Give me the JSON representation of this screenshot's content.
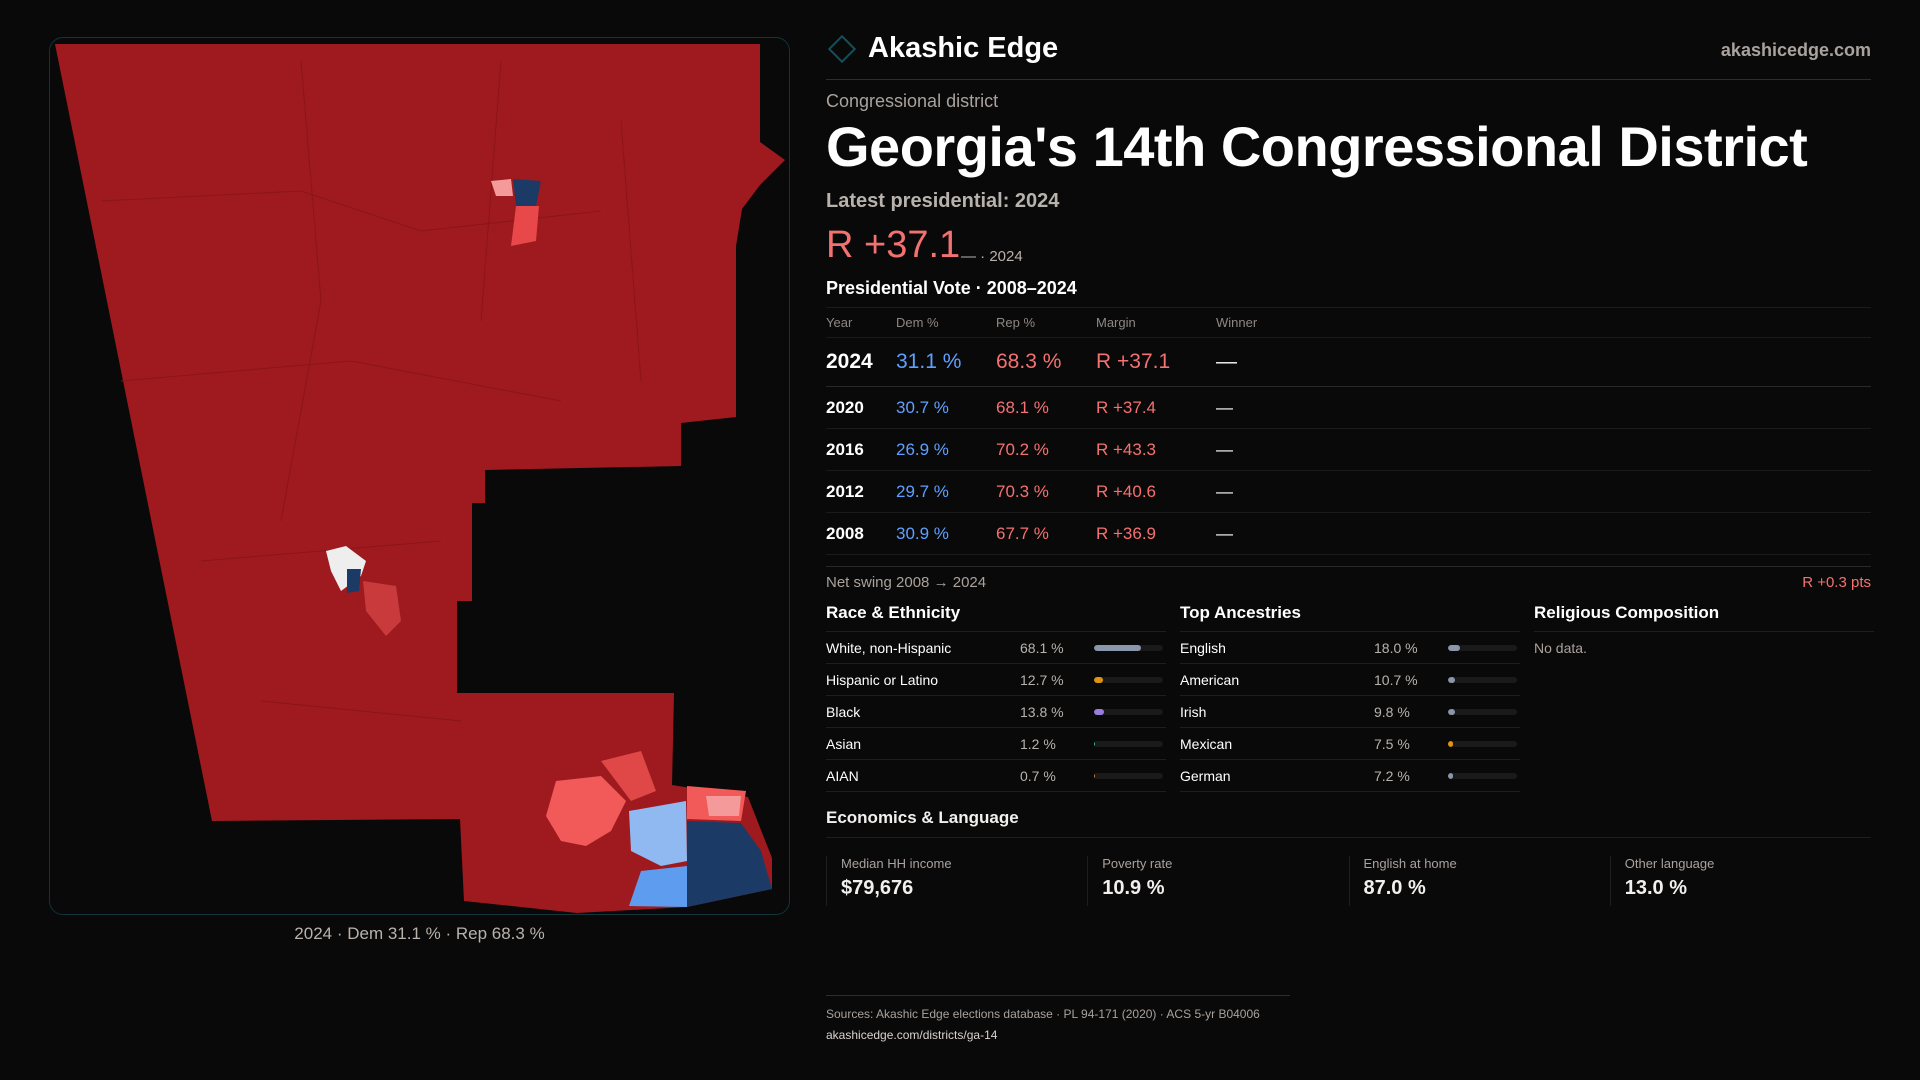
{
  "brand": {
    "name": "Akashic Edge",
    "site": "akashicedge.com",
    "logo_icon": "diamond-icon"
  },
  "header": {
    "kicker": "Congressional district",
    "title": "Georgia's 14th Congressional District",
    "latest": "Latest presidential: 2024",
    "margin": "R +37.1",
    "margin_note": "— · 2024"
  },
  "map": {
    "caption": "2024 · Dem 31.1 % · Rep 68.3 %",
    "colors": {
      "rep_strong": "#9e1a1e",
      "rep_light": "#f25a5a",
      "dem_light": "#6aa6f0",
      "dem_strong": "#1c3a66",
      "none": "#eeeeee"
    }
  },
  "vote": {
    "title": "Presidential Vote · 2008–2024",
    "headers": [
      "Year",
      "Dem %",
      "Rep %",
      "Margin",
      "Winner"
    ],
    "rows": [
      {
        "year": "2024",
        "dem": "31.1 %",
        "rep": "68.3 %",
        "margin": "R +37.1",
        "winner": "—"
      },
      {
        "year": "2020",
        "dem": "30.7 %",
        "rep": "68.1 %",
        "margin": "R +37.4",
        "winner": "—"
      },
      {
        "year": "2016",
        "dem": "26.9 %",
        "rep": "70.2 %",
        "margin": "R +43.3",
        "winner": "—"
      },
      {
        "year": "2012",
        "dem": "29.7 %",
        "rep": "70.3 %",
        "margin": "R +40.6",
        "winner": "—"
      },
      {
        "year": "2008",
        "dem": "30.9 %",
        "rep": "67.7 %",
        "margin": "R +36.9",
        "winner": "—"
      }
    ],
    "swing_label": "Net swing 2008 → 2024",
    "swing_value": "R +0.3 pts"
  },
  "race": {
    "title": "Race & Ethnicity",
    "items": [
      {
        "label": "White, non-Hispanic",
        "pct": "68.1 %",
        "value": 68.1,
        "color": "#8a97aa"
      },
      {
        "label": "Hispanic or Latino",
        "pct": "12.7 %",
        "value": 12.7,
        "color": "#e0940e"
      },
      {
        "label": "Black",
        "pct": "13.8 %",
        "value": 13.8,
        "color": "#9b7de0"
      },
      {
        "label": "Asian",
        "pct": "1.2 %",
        "value": 1.2,
        "color": "#3fae7a"
      },
      {
        "label": "AIAN",
        "pct": "0.7 %",
        "value": 0.7,
        "color": "#c07a3a"
      }
    ]
  },
  "ancestry": {
    "title": "Top Ancestries",
    "items": [
      {
        "label": "English",
        "pct": "18.0 %",
        "value": 18.0,
        "color": "#8a97aa"
      },
      {
        "label": "American",
        "pct": "10.7 %",
        "value": 10.7,
        "color": "#8a97aa"
      },
      {
        "label": "Irish",
        "pct": "9.8 %",
        "value": 9.8,
        "color": "#8a97aa"
      },
      {
        "label": "Mexican",
        "pct": "7.5 %",
        "value": 7.5,
        "color": "#e0940e"
      },
      {
        "label": "German",
        "pct": "7.2 %",
        "value": 7.2,
        "color": "#8a97aa"
      }
    ]
  },
  "religion": {
    "title": "Religious Composition",
    "empty": "No data."
  },
  "economics": {
    "title": "Economics & Language",
    "stats": [
      {
        "label": "Median HH income",
        "value": "$79,676"
      },
      {
        "label": "Poverty rate",
        "value": "10.9 %"
      },
      {
        "label": "English at home",
        "value": "87.0 %"
      },
      {
        "label": "Other language",
        "value": "13.0 %"
      }
    ]
  },
  "footer": {
    "sources": "Sources: Akashic Edge elections database · PL 94-171 (2020) · ACS 5-yr B04006",
    "url": "akashicedge.com/districts/ga-14"
  }
}
